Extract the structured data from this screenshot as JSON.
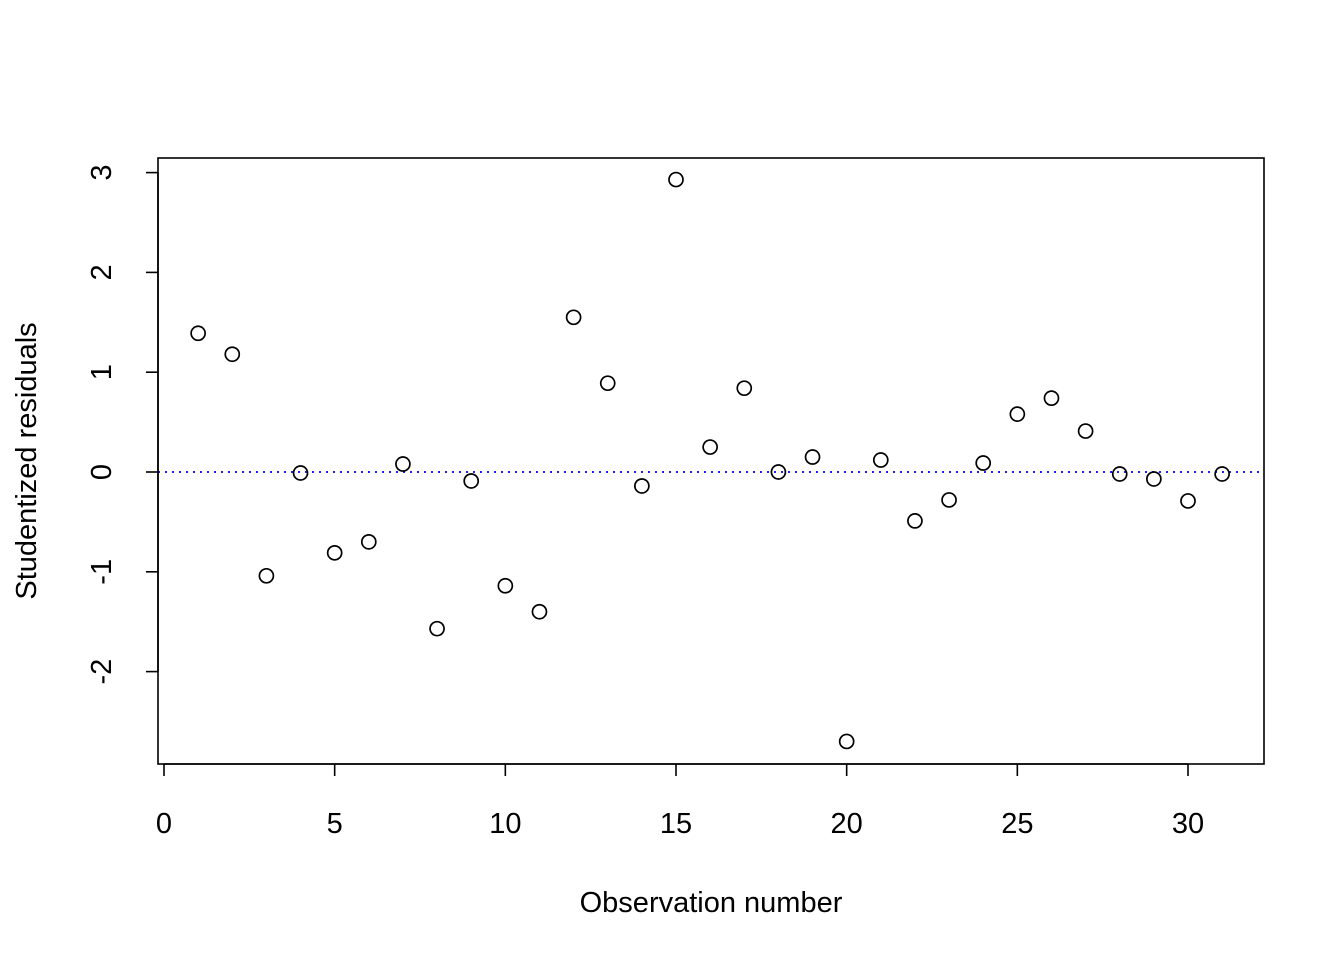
{
  "chart_data": {
    "type": "scatter",
    "title": "",
    "xlabel": "Observation number",
    "ylabel": "Studentized residuals",
    "xlim": [
      0,
      32
    ],
    "ylim": [
      -2.9,
      3.15
    ],
    "x_ticks": [
      0,
      5,
      10,
      15,
      20,
      25,
      30
    ],
    "y_ticks": [
      -2,
      -1,
      0,
      1,
      2,
      3
    ],
    "x_tick_labels": [
      "0",
      "5",
      "10",
      "15",
      "20",
      "25",
      "30"
    ],
    "y_tick_labels": [
      "-2",
      "-1",
      "0",
      "1",
      "2",
      "3"
    ],
    "grid": false,
    "marker": "open-circle",
    "reference_line": {
      "y": 0,
      "style": "dotted",
      "color": "#0000ff"
    },
    "x": [
      1,
      2,
      3,
      4,
      5,
      6,
      7,
      8,
      9,
      10,
      11,
      12,
      13,
      14,
      15,
      16,
      17,
      18,
      19,
      20,
      21,
      22,
      23,
      24,
      25,
      26,
      27,
      28,
      29,
      30,
      31
    ],
    "y": [
      1.39,
      1.18,
      -1.04,
      -0.01,
      -0.81,
      -0.7,
      0.08,
      -1.57,
      -0.09,
      -1.14,
      -1.4,
      1.55,
      0.89,
      -0.14,
      2.93,
      0.25,
      0.84,
      0.0,
      0.15,
      -2.7,
      0.12,
      -0.49,
      -0.28,
      0.09,
      0.58,
      0.74,
      0.41,
      -0.02,
      -0.07,
      -0.29,
      -0.02
    ]
  }
}
